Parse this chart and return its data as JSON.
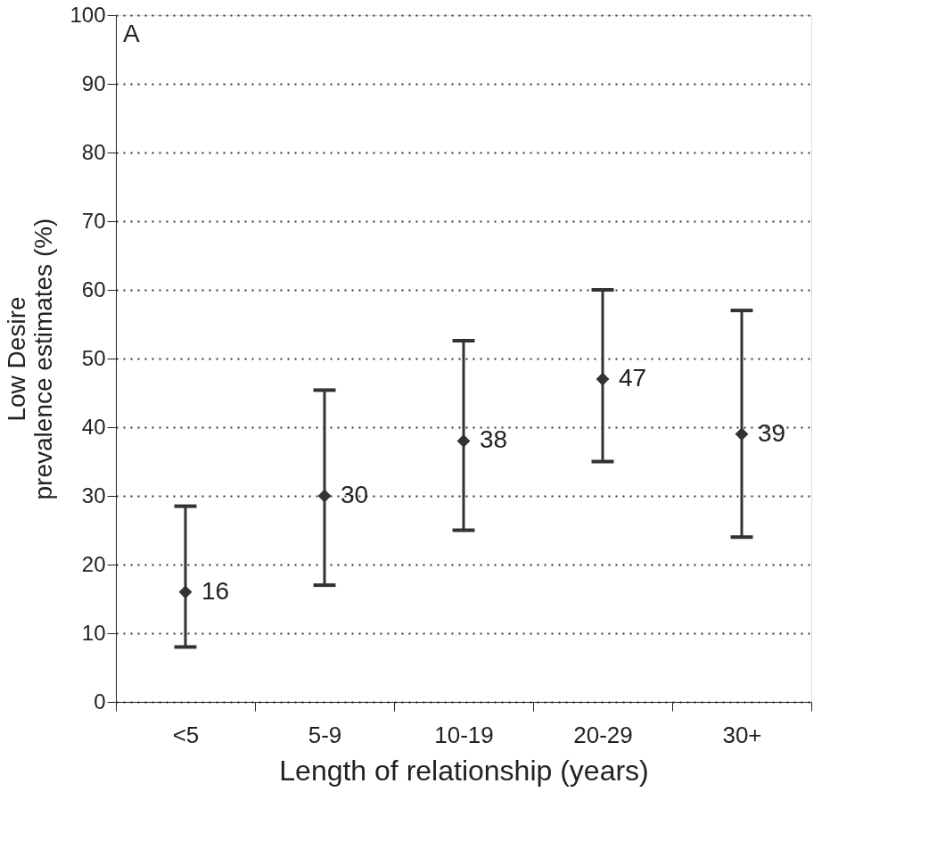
{
  "chart_data": {
    "type": "scatter",
    "xlabel": "Length of relationship (years)",
    "ylabel": "Low Desire\nprevalence estimates (%)",
    "annotations": [
      "A"
    ],
    "categories": [
      "<5",
      "5-9",
      "10-19",
      "20-29",
      "30+"
    ],
    "values": [
      16,
      30,
      38,
      47,
      39
    ],
    "errors": [
      [
        8,
        28.5
      ],
      [
        17,
        45.4
      ],
      [
        25,
        52.6
      ],
      [
        35,
        60
      ],
      [
        24,
        57
      ]
    ],
    "color": "#333333",
    "marker": "diamond",
    "data_labels": true,
    "grid": "y",
    "ylim": [
      0,
      100
    ],
    "yticks": [
      0,
      10,
      20,
      30,
      40,
      50,
      60,
      70,
      80,
      90,
      100
    ]
  }
}
